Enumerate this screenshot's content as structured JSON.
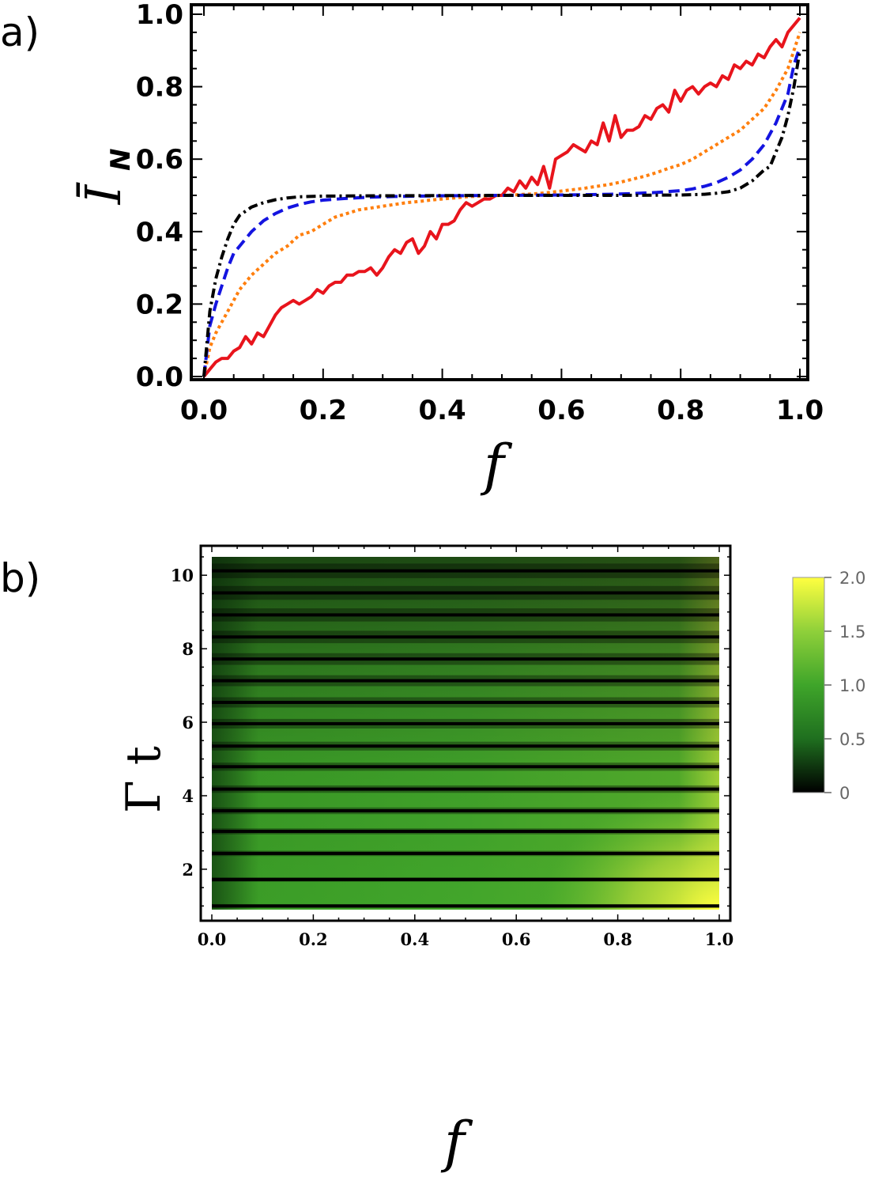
{
  "chart_data": [
    {
      "type": "line",
      "panel_label": "a)",
      "xlabel": "f",
      "ylabel": "Ī",
      "ylabel_subscript": "N",
      "xlim": [
        0.0,
        1.0
      ],
      "ylim": [
        0.0,
        1.0
      ],
      "xticks": [
        "0.0",
        "0.2",
        "0.4",
        "0.6",
        "0.8",
        "1.0"
      ],
      "yticks": [
        "0.0",
        "0.2",
        "0.4",
        "0.6",
        "0.8",
        "1.0"
      ],
      "series": [
        {
          "color": "#e8141c",
          "style": "solid",
          "points": [
            [
              0.0,
              0.0
            ],
            [
              0.01,
              0.02
            ],
            [
              0.02,
              0.04
            ],
            [
              0.03,
              0.05
            ],
            [
              0.04,
              0.05
            ],
            [
              0.05,
              0.07
            ],
            [
              0.06,
              0.08
            ],
            [
              0.07,
              0.11
            ],
            [
              0.08,
              0.09
            ],
            [
              0.09,
              0.12
            ],
            [
              0.1,
              0.11
            ],
            [
              0.11,
              0.14
            ],
            [
              0.12,
              0.17
            ],
            [
              0.13,
              0.19
            ],
            [
              0.14,
              0.2
            ],
            [
              0.15,
              0.21
            ],
            [
              0.16,
              0.2
            ],
            [
              0.17,
              0.21
            ],
            [
              0.18,
              0.22
            ],
            [
              0.19,
              0.24
            ],
            [
              0.2,
              0.23
            ],
            [
              0.21,
              0.25
            ],
            [
              0.22,
              0.26
            ],
            [
              0.23,
              0.26
            ],
            [
              0.24,
              0.28
            ],
            [
              0.25,
              0.28
            ],
            [
              0.26,
              0.29
            ],
            [
              0.27,
              0.29
            ],
            [
              0.28,
              0.3
            ],
            [
              0.29,
              0.28
            ],
            [
              0.3,
              0.3
            ],
            [
              0.31,
              0.33
            ],
            [
              0.32,
              0.35
            ],
            [
              0.33,
              0.34
            ],
            [
              0.34,
              0.37
            ],
            [
              0.35,
              0.38
            ],
            [
              0.36,
              0.34
            ],
            [
              0.37,
              0.36
            ],
            [
              0.38,
              0.4
            ],
            [
              0.39,
              0.38
            ],
            [
              0.4,
              0.42
            ],
            [
              0.41,
              0.42
            ],
            [
              0.42,
              0.43
            ],
            [
              0.43,
              0.46
            ],
            [
              0.44,
              0.48
            ],
            [
              0.45,
              0.47
            ],
            [
              0.46,
              0.48
            ],
            [
              0.47,
              0.49
            ],
            [
              0.48,
              0.49
            ],
            [
              0.49,
              0.5
            ],
            [
              0.5,
              0.5
            ],
            [
              0.51,
              0.52
            ],
            [
              0.52,
              0.51
            ],
            [
              0.53,
              0.54
            ],
            [
              0.54,
              0.52
            ],
            [
              0.55,
              0.55
            ],
            [
              0.56,
              0.53
            ],
            [
              0.57,
              0.58
            ],
            [
              0.58,
              0.52
            ],
            [
              0.59,
              0.6
            ],
            [
              0.6,
              0.61
            ],
            [
              0.61,
              0.62
            ],
            [
              0.62,
              0.64
            ],
            [
              0.63,
              0.63
            ],
            [
              0.64,
              0.62
            ],
            [
              0.65,
              0.65
            ],
            [
              0.66,
              0.64
            ],
            [
              0.67,
              0.7
            ],
            [
              0.68,
              0.65
            ],
            [
              0.69,
              0.72
            ],
            [
              0.7,
              0.66
            ],
            [
              0.71,
              0.68
            ],
            [
              0.72,
              0.68
            ],
            [
              0.73,
              0.69
            ],
            [
              0.74,
              0.72
            ],
            [
              0.75,
              0.71
            ],
            [
              0.76,
              0.74
            ],
            [
              0.77,
              0.75
            ],
            [
              0.78,
              0.73
            ],
            [
              0.79,
              0.79
            ],
            [
              0.8,
              0.76
            ],
            [
              0.81,
              0.79
            ],
            [
              0.82,
              0.8
            ],
            [
              0.83,
              0.78
            ],
            [
              0.84,
              0.8
            ],
            [
              0.85,
              0.81
            ],
            [
              0.86,
              0.8
            ],
            [
              0.87,
              0.83
            ],
            [
              0.88,
              0.82
            ],
            [
              0.89,
              0.86
            ],
            [
              0.9,
              0.85
            ],
            [
              0.91,
              0.87
            ],
            [
              0.92,
              0.86
            ],
            [
              0.93,
              0.89
            ],
            [
              0.94,
              0.88
            ],
            [
              0.95,
              0.91
            ],
            [
              0.96,
              0.93
            ],
            [
              0.97,
              0.91
            ],
            [
              0.98,
              0.95
            ],
            [
              0.99,
              0.97
            ],
            [
              1.0,
              0.99
            ]
          ]
        },
        {
          "color": "#ff7f0e",
          "style": "dotted",
          "points": [
            [
              0.0,
              0.0
            ],
            [
              0.01,
              0.08
            ],
            [
              0.02,
              0.12
            ],
            [
              0.03,
              0.15
            ],
            [
              0.04,
              0.18
            ],
            [
              0.05,
              0.21
            ],
            [
              0.06,
              0.24
            ],
            [
              0.08,
              0.28
            ],
            [
              0.1,
              0.31
            ],
            [
              0.12,
              0.34
            ],
            [
              0.14,
              0.36
            ],
            [
              0.16,
              0.39
            ],
            [
              0.18,
              0.4
            ],
            [
              0.2,
              0.42
            ],
            [
              0.22,
              0.44
            ],
            [
              0.24,
              0.45
            ],
            [
              0.26,
              0.46
            ],
            [
              0.28,
              0.465
            ],
            [
              0.3,
              0.47
            ],
            [
              0.32,
              0.475
            ],
            [
              0.34,
              0.48
            ],
            [
              0.36,
              0.483
            ],
            [
              0.38,
              0.487
            ],
            [
              0.4,
              0.49
            ],
            [
              0.42,
              0.493
            ],
            [
              0.44,
              0.496
            ],
            [
              0.46,
              0.498
            ],
            [
              0.48,
              0.499
            ],
            [
              0.5,
              0.5
            ],
            [
              0.52,
              0.501
            ],
            [
              0.54,
              0.503
            ],
            [
              0.56,
              0.505
            ],
            [
              0.58,
              0.508
            ],
            [
              0.6,
              0.512
            ],
            [
              0.62,
              0.516
            ],
            [
              0.64,
              0.52
            ],
            [
              0.66,
              0.525
            ],
            [
              0.68,
              0.53
            ],
            [
              0.7,
              0.537
            ],
            [
              0.72,
              0.545
            ],
            [
              0.74,
              0.553
            ],
            [
              0.76,
              0.563
            ],
            [
              0.78,
              0.575
            ],
            [
              0.8,
              0.585
            ],
            [
              0.82,
              0.6
            ],
            [
              0.84,
              0.62
            ],
            [
              0.86,
              0.64
            ],
            [
              0.88,
              0.66
            ],
            [
              0.9,
              0.68
            ],
            [
              0.92,
              0.71
            ],
            [
              0.94,
              0.74
            ],
            [
              0.96,
              0.79
            ],
            [
              0.98,
              0.85
            ],
            [
              0.99,
              0.9
            ],
            [
              1.0,
              0.95
            ]
          ]
        },
        {
          "color": "#1414e0",
          "style": "dashed",
          "points": [
            [
              0.0,
              0.0
            ],
            [
              0.01,
              0.14
            ],
            [
              0.02,
              0.2
            ],
            [
              0.03,
              0.25
            ],
            [
              0.04,
              0.3
            ],
            [
              0.05,
              0.34
            ],
            [
              0.06,
              0.36
            ],
            [
              0.08,
              0.4
            ],
            [
              0.1,
              0.43
            ],
            [
              0.12,
              0.45
            ],
            [
              0.14,
              0.465
            ],
            [
              0.16,
              0.475
            ],
            [
              0.18,
              0.482
            ],
            [
              0.2,
              0.487
            ],
            [
              0.24,
              0.492
            ],
            [
              0.28,
              0.495
            ],
            [
              0.32,
              0.497
            ],
            [
              0.36,
              0.498
            ],
            [
              0.4,
              0.499
            ],
            [
              0.5,
              0.5
            ],
            [
              0.6,
              0.501
            ],
            [
              0.64,
              0.502
            ],
            [
              0.68,
              0.503
            ],
            [
              0.72,
              0.505
            ],
            [
              0.76,
              0.508
            ],
            [
              0.8,
              0.513
            ],
            [
              0.82,
              0.518
            ],
            [
              0.84,
              0.525
            ],
            [
              0.86,
              0.535
            ],
            [
              0.88,
              0.55
            ],
            [
              0.9,
              0.57
            ],
            [
              0.92,
              0.6
            ],
            [
              0.94,
              0.64
            ],
            [
              0.96,
              0.7
            ],
            [
              0.98,
              0.78
            ],
            [
              0.99,
              0.86
            ],
            [
              1.0,
              0.91
            ]
          ]
        },
        {
          "color": "#000000",
          "style": "dashdot",
          "points": [
            [
              0.0,
              0.0
            ],
            [
              0.01,
              0.18
            ],
            [
              0.02,
              0.27
            ],
            [
              0.03,
              0.33
            ],
            [
              0.04,
              0.38
            ],
            [
              0.05,
              0.42
            ],
            [
              0.06,
              0.445
            ],
            [
              0.08,
              0.468
            ],
            [
              0.1,
              0.48
            ],
            [
              0.12,
              0.488
            ],
            [
              0.14,
              0.493
            ],
            [
              0.16,
              0.496
            ],
            [
              0.2,
              0.498
            ],
            [
              0.3,
              0.499
            ],
            [
              0.5,
              0.5
            ],
            [
              0.7,
              0.5
            ],
            [
              0.8,
              0.501
            ],
            [
              0.84,
              0.503
            ],
            [
              0.86,
              0.506
            ],
            [
              0.88,
              0.51
            ],
            [
              0.9,
              0.52
            ],
            [
              0.92,
              0.54
            ],
            [
              0.94,
              0.57
            ],
            [
              0.95,
              0.58
            ],
            [
              0.96,
              0.62
            ],
            [
              0.97,
              0.66
            ],
            [
              0.98,
              0.72
            ],
            [
              0.99,
              0.8
            ],
            [
              1.0,
              0.9
            ]
          ]
        }
      ]
    },
    {
      "type": "heatmap",
      "panel_label": "b)",
      "xlabel": "f",
      "ylabel": "Γ t",
      "xlim": [
        0.0,
        1.0
      ],
      "ylim": [
        0.9,
        10.5
      ],
      "xticks": [
        "0.0",
        "0.2",
        "0.4",
        "0.6",
        "0.8",
        "1.0"
      ],
      "yticks": [
        "2",
        "4",
        "6",
        "8",
        "10"
      ],
      "colorbar": {
        "range": [
          0,
          2.0
        ],
        "ticks": [
          "0",
          "0.5",
          "1.0",
          "1.5",
          "2.0"
        ],
        "colors": [
          "#000000",
          "#1f6f1f",
          "#3fa52a",
          "#8fd03a",
          "#ffff40"
        ]
      },
      "dark_band_positions_Gamma_t": [
        1.0,
        1.72,
        2.43,
        3.03,
        3.59,
        4.18,
        4.79,
        5.35,
        5.96,
        6.54,
        7.13,
        7.72,
        8.32,
        8.92,
        9.52,
        10.12
      ]
    }
  ]
}
